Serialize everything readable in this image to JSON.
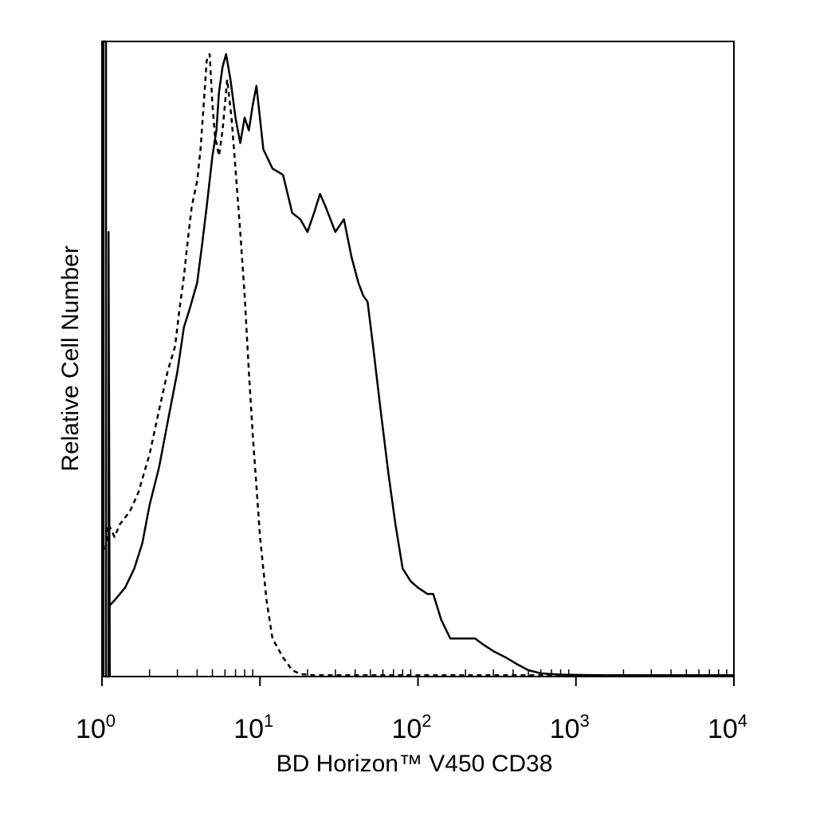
{
  "chart_data": {
    "type": "line",
    "title": "",
    "xlabel": "BD Horizon™ V450 CD38",
    "ylabel": "Relative Cell Number",
    "x_scale": "log",
    "xlim": [
      1,
      10000
    ],
    "ylim": [
      0,
      100
    ],
    "grid": false,
    "legend": "none",
    "x_tick_labels": [
      {
        "base": "10",
        "exp": "0",
        "value": 1
      },
      {
        "base": "10",
        "exp": "1",
        "value": 10
      },
      {
        "base": "10",
        "exp": "2",
        "value": 100
      },
      {
        "base": "10",
        "exp": "3",
        "value": 1000
      },
      {
        "base": "10",
        "exp": "4",
        "value": 10000
      }
    ],
    "series": [
      {
        "style": "solid",
        "color": "#000000",
        "points": [
          [
            1.1,
            11
          ],
          [
            1.2,
            12
          ],
          [
            1.4,
            14
          ],
          [
            1.6,
            17
          ],
          [
            1.8,
            21
          ],
          [
            2.0,
            27
          ],
          [
            2.3,
            33
          ],
          [
            2.6,
            40
          ],
          [
            3.0,
            48
          ],
          [
            3.3,
            55
          ],
          [
            3.6,
            58
          ],
          [
            4.0,
            62
          ],
          [
            4.3,
            68
          ],
          [
            4.6,
            74
          ],
          [
            5.0,
            82
          ],
          [
            5.3,
            86
          ],
          [
            5.5,
            92
          ],
          [
            5.8,
            96
          ],
          [
            6.1,
            98
          ],
          [
            6.5,
            94
          ],
          [
            7.0,
            88
          ],
          [
            7.5,
            84
          ],
          [
            8.0,
            88
          ],
          [
            8.5,
            86
          ],
          [
            9.0,
            90
          ],
          [
            9.5,
            93
          ],
          [
            10.5,
            83
          ],
          [
            12,
            80
          ],
          [
            14,
            79
          ],
          [
            16,
            73
          ],
          [
            18,
            72
          ],
          [
            20,
            70
          ],
          [
            22,
            73
          ],
          [
            24,
            76
          ],
          [
            26,
            74
          ],
          [
            30,
            70
          ],
          [
            34,
            72
          ],
          [
            38,
            66
          ],
          [
            42,
            62
          ],
          [
            45,
            60
          ],
          [
            48,
            59
          ],
          [
            52,
            52
          ],
          [
            58,
            42
          ],
          [
            65,
            32
          ],
          [
            72,
            24
          ],
          [
            80,
            17
          ],
          [
            90,
            15
          ],
          [
            100,
            14
          ],
          [
            115,
            13
          ],
          [
            125,
            13
          ],
          [
            140,
            9
          ],
          [
            160,
            6
          ],
          [
            180,
            6
          ],
          [
            200,
            6
          ],
          [
            230,
            6
          ],
          [
            260,
            5
          ],
          [
            300,
            4
          ],
          [
            360,
            3
          ],
          [
            420,
            2
          ],
          [
            500,
            1
          ],
          [
            600,
            0.5
          ],
          [
            800,
            0.3
          ],
          [
            1500,
            0.2
          ],
          [
            3000,
            0.2
          ],
          [
            10000,
            0.2
          ]
        ]
      },
      {
        "style": "dashed",
        "color": "#000000",
        "points": [
          [
            1.05,
            20
          ],
          [
            1.1,
            24
          ],
          [
            1.2,
            22
          ],
          [
            1.3,
            24
          ],
          [
            1.5,
            26
          ],
          [
            1.7,
            29
          ],
          [
            2.0,
            35
          ],
          [
            2.3,
            42
          ],
          [
            2.6,
            48
          ],
          [
            2.9,
            52
          ],
          [
            3.1,
            58
          ],
          [
            3.3,
            63
          ],
          [
            3.5,
            69
          ],
          [
            3.7,
            74
          ],
          [
            4.0,
            78
          ],
          [
            4.2,
            83
          ],
          [
            4.4,
            90
          ],
          [
            4.6,
            97
          ],
          [
            4.8,
            98
          ],
          [
            5.0,
            90
          ],
          [
            5.2,
            85
          ],
          [
            5.5,
            82
          ],
          [
            5.8,
            86
          ],
          [
            6.2,
            94
          ],
          [
            6.6,
            88
          ],
          [
            7.0,
            80
          ],
          [
            7.5,
            70
          ],
          [
            8.0,
            60
          ],
          [
            8.5,
            48
          ],
          [
            9.0,
            38
          ],
          [
            9.5,
            30
          ],
          [
            10,
            22
          ],
          [
            11,
            12
          ],
          [
            12,
            6
          ],
          [
            14,
            3
          ],
          [
            16,
            1
          ],
          [
            18,
            0.4
          ],
          [
            22,
            0.2
          ],
          [
            40,
            0.2
          ],
          [
            100,
            0.2
          ],
          [
            1000,
            0.2
          ],
          [
            10000,
            0.2
          ]
        ]
      },
      {
        "style": "solid",
        "color": "#000000",
        "role": "left-edge spike at ~10^0",
        "points": [
          [
            1.02,
            0
          ],
          [
            1.02,
            100
          ],
          [
            1.06,
            100
          ],
          [
            1.06,
            0
          ],
          [
            1.1,
            0
          ],
          [
            1.1,
            70
          ],
          [
            1.12,
            0
          ]
        ]
      }
    ]
  }
}
